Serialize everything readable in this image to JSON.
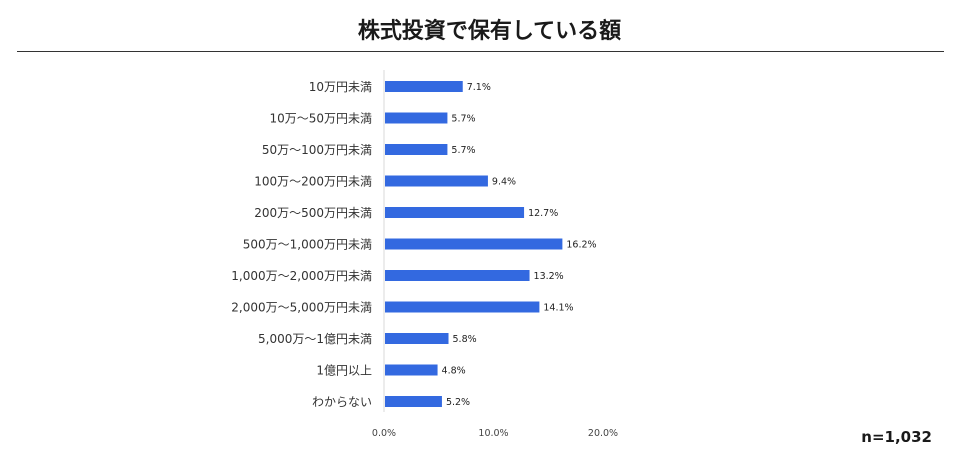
{
  "title": "株式投資で保有している額",
  "sample_note": "n=1,032",
  "colors": {
    "bar": "#3369e0",
    "axis": "#d9d9d9",
    "label": "#333333"
  },
  "chart_data": {
    "type": "bar",
    "orientation": "horizontal",
    "categories": [
      "10万円未満",
      "10万～50万円未満",
      "50万～100万円未満",
      "100万～200万円未満",
      "200万～500万円未満",
      "500万～1,000万円未満",
      "1,000万～2,000万円未満",
      "2,000万～5,000万円未満",
      "5,000万～1億円未満",
      "1億円以上",
      "わからない"
    ],
    "values": [
      7.1,
      5.7,
      5.7,
      9.4,
      12.7,
      16.2,
      13.2,
      14.1,
      5.8,
      4.8,
      5.2
    ],
    "value_labels": [
      "7.1%",
      "5.7%",
      "5.7%",
      "9.4%",
      "12.7%",
      "16.2%",
      "13.2%",
      "14.1%",
      "5.8%",
      "4.8%",
      "5.2%"
    ],
    "xlim": [
      0,
      20
    ],
    "xticks": [
      0,
      10,
      20
    ],
    "xtick_labels": [
      "0.0%",
      "10.0%",
      "20.0%"
    ],
    "grid": false,
    "legend": "none"
  }
}
